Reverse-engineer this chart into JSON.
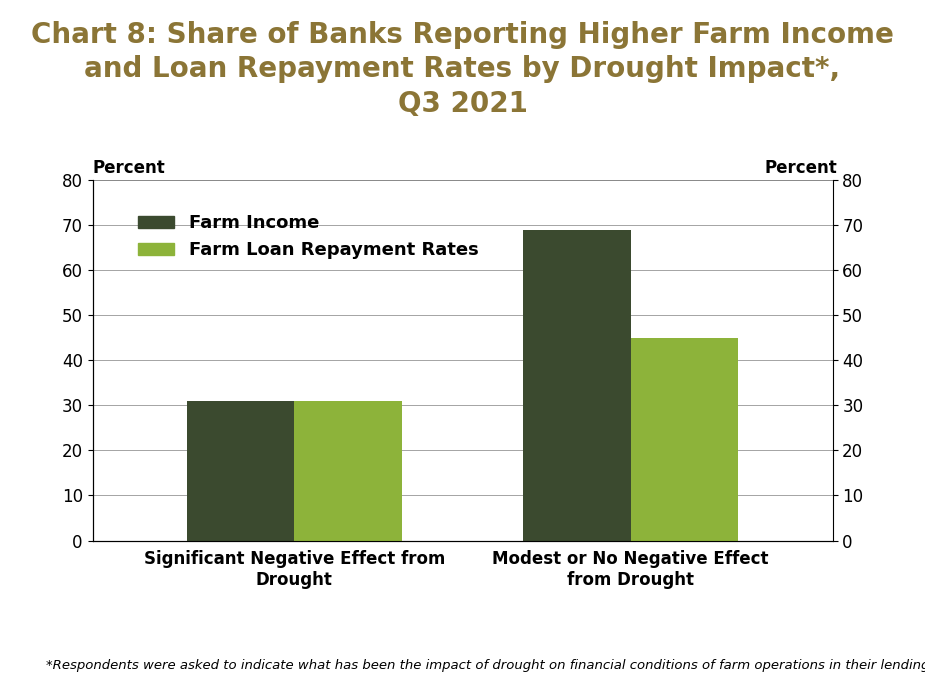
{
  "title": "Chart 8: Share of Banks Reporting Higher Farm Income\nand Loan Repayment Rates by Drought Impact*,\nQ3 2021",
  "title_color": "#8B7536",
  "categories": [
    "Significant Negative Effect from\nDrought",
    "Modest or No Negative Effect\nfrom Drought"
  ],
  "farm_income": [
    31,
    69
  ],
  "loan_repayment": [
    31,
    45
  ],
  "farm_income_color": "#3B4A2F",
  "loan_repayment_color": "#8DB33A",
  "legend_labels": [
    "Farm Income",
    "Farm Loan Repayment Rates"
  ],
  "ylabel_left": "Percent",
  "ylabel_right": "Percent",
  "ylim": [
    0,
    80
  ],
  "yticks": [
    0,
    10,
    20,
    30,
    40,
    50,
    60,
    70,
    80
  ],
  "footnote": "*Respondents were asked to indicate what has been the impact of drought on financial conditions of farm operations in their lending area?",
  "background_color": "#FFFFFF",
  "bar_width": 0.32,
  "title_fontsize": 20,
  "axis_label_fontsize": 12,
  "tick_fontsize": 12,
  "legend_fontsize": 13,
  "footnote_fontsize": 9.5
}
